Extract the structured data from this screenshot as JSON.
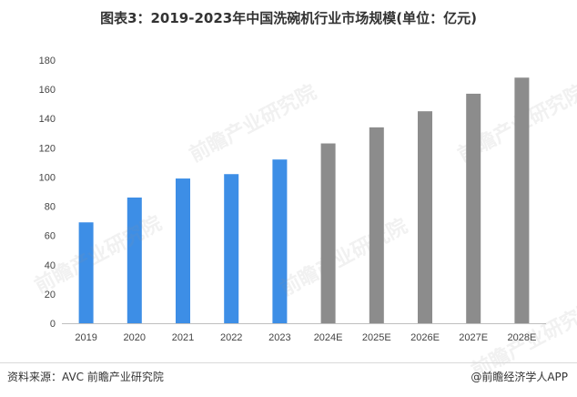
{
  "chart_data": {
    "type": "bar",
    "title": "图表3：2019-2023年中国洗碗机行业市场规模(单位：亿元)",
    "categories": [
      "2019",
      "2020",
      "2021",
      "2022",
      "2023",
      "2024E",
      "2025E",
      "2026E",
      "2027E",
      "2028E"
    ],
    "values": [
      69,
      86,
      99,
      102,
      112,
      123,
      134,
      145,
      157,
      168
    ],
    "ylim": [
      0,
      180
    ],
    "yticks": [
      0,
      20,
      40,
      60,
      80,
      100,
      120,
      140,
      160,
      180
    ],
    "actual_color": "#3d8ee6",
    "forecast_color": "#8c8c8c",
    "forecast_start_index": 5,
    "grid": false,
    "xlabel": "",
    "ylabel": ""
  },
  "footer": {
    "source": "资料来源：AVC 前瞻产业研究院",
    "brand": "@前瞻经济学人APP"
  },
  "watermark": {
    "text": "前瞻产业研究院"
  }
}
